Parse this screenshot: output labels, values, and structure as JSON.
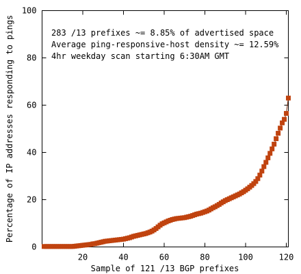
{
  "chart_data": {
    "type": "scatter",
    "title": "",
    "xlabel": "Sample of 121 /13 BGP prefixes",
    "ylabel": "Percentage of IP addresses responding to pings",
    "xlim": [
      0,
      121
    ],
    "ylim": [
      0,
      100
    ],
    "xticks": [
      20,
      40,
      60,
      80,
      100,
      120
    ],
    "yticks": [
      0,
      20,
      40,
      60,
      80,
      100
    ],
    "annotations": [
      "283 /13 prefixes ~= 8.85% of advertised space",
      "Average ping-responsive-host density ~= 12.59%",
      "4hr weekday scan starting 6:30AM GMT"
    ],
    "grid": false,
    "legend": "none",
    "colors": {
      "marker": "#c0430f",
      "line": "#7a2a0a"
    },
    "series": [
      {
        "x": [
          1,
          2,
          3,
          4,
          5,
          6,
          7,
          8,
          9,
          10,
          11,
          12,
          13,
          14,
          15,
          16,
          17,
          18,
          19,
          20,
          21,
          22,
          23,
          24,
          25,
          26,
          27,
          28,
          29,
          30,
          31,
          32,
          33,
          34,
          35,
          36,
          37,
          38,
          39,
          40,
          41,
          42,
          43,
          44,
          45,
          46,
          47,
          48,
          49,
          50,
          51,
          52,
          53,
          54,
          55,
          56,
          57,
          58,
          59,
          60,
          61,
          62,
          63,
          64,
          65,
          66,
          67,
          68,
          69,
          70,
          71,
          72,
          73,
          74,
          75,
          76,
          77,
          78,
          79,
          80,
          81,
          82,
          83,
          84,
          85,
          86,
          87,
          88,
          89,
          90,
          91,
          92,
          93,
          94,
          95,
          96,
          97,
          98,
          99,
          100,
          101,
          102,
          103,
          104,
          105,
          106,
          107,
          108,
          109,
          110,
          111,
          112,
          113,
          114,
          115,
          116,
          117,
          118,
          119,
          120,
          121
        ],
        "y": [
          0.2,
          0.2,
          0.2,
          0.2,
          0.2,
          0.2,
          0.2,
          0.2,
          0.2,
          0.2,
          0.2,
          0.2,
          0.2,
          0.2,
          0.2,
          0.3,
          0.4,
          0.5,
          0.6,
          0.7,
          0.8,
          0.9,
          1.0,
          1.1,
          1.3,
          1.4,
          1.6,
          1.8,
          2.0,
          2.2,
          2.4,
          2.5,
          2.6,
          2.7,
          2.8,
          2.9,
          3.0,
          3.1,
          3.2,
          3.3,
          3.5,
          3.7,
          3.9,
          4.2,
          4.5,
          4.7,
          4.9,
          5.1,
          5.3,
          5.5,
          5.7,
          6.0,
          6.3,
          6.7,
          7.2,
          7.8,
          8.5,
          9.2,
          9.8,
          10.2,
          10.6,
          11.0,
          11.3,
          11.6,
          11.8,
          12.0,
          12.1,
          12.2,
          12.3,
          12.4,
          12.6,
          12.8,
          13.0,
          13.3,
          13.6,
          13.9,
          14.1,
          14.3,
          14.6,
          14.9,
          15.2,
          15.6,
          16.1,
          16.6,
          17.0,
          17.5,
          18.0,
          18.6,
          19.1,
          19.6,
          20.0,
          20.4,
          20.8,
          21.2,
          21.6,
          22.0,
          22.4,
          22.9,
          23.4,
          24.0,
          24.6,
          25.3,
          26.0,
          26.8,
          27.7,
          28.9,
          30.4,
          32.1,
          34.0,
          35.8,
          37.7,
          39.6,
          41.5,
          43.5,
          45.8,
          48.1,
          50.3,
          52.5,
          54.0,
          56.5,
          63.0
        ]
      }
    ]
  }
}
